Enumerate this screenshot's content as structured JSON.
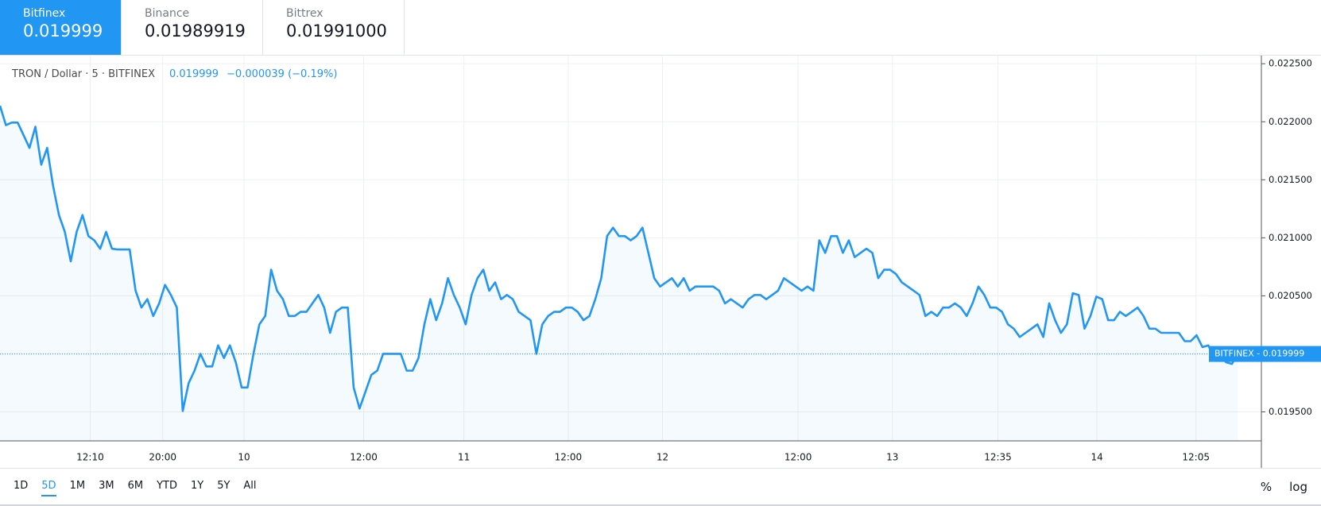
{
  "tabs": [
    {
      "name": "Bitfinex",
      "price": "0.019999"
    },
    {
      "name": "Binance",
      "price": "0.01989919"
    },
    {
      "name": "Bittrex",
      "price": "0.01991000"
    }
  ],
  "chart_data": {
    "type": "line",
    "title": "TRON / Dollar · 5 · BITFINEX",
    "last_price": 0.019999,
    "change": "−0.000039 (−0.19%)",
    "price_tag": "BITFINEX - 0.019999",
    "color": "#2196f3",
    "grid": true,
    "values": [
      0.022138,
      0.021971,
      0.021993,
      0.021993,
      0.021884,
      0.021775,
      0.021957,
      0.02163,
      0.021775,
      0.021449,
      0.021196,
      0.021051,
      0.020797,
      0.021051,
      0.021196,
      0.021015,
      0.020978,
      0.020906,
      0.021051,
      0.020906,
      0.020899,
      0.020899,
      0.020899,
      0.020544,
      0.020399,
      0.020471,
      0.020326,
      0.020435,
      0.020594,
      0.020507,
      0.020399,
      0.019507,
      0.019747,
      0.019855,
      0.02,
      0.019891,
      0.019891,
      0.020073,
      0.019964,
      0.020073,
      0.019928,
      0.01971,
      0.01971,
      0.02,
      0.020254,
      0.020326,
      0.020725,
      0.020544,
      0.020471,
      0.020326,
      0.020326,
      0.020362,
      0.020362,
      0.020435,
      0.020507,
      0.020399,
      0.020181,
      0.020362,
      0.020399,
      0.020399,
      0.01971,
      0.019529,
      0.019674,
      0.019819,
      0.019855,
      0.02,
      0.02,
      0.02,
      0.02,
      0.019855,
      0.019855,
      0.019964,
      0.020254,
      0.020471,
      0.02029,
      0.020435,
      0.020652,
      0.020507,
      0.020399,
      0.020254,
      0.020507,
      0.020652,
      0.020725,
      0.020544,
      0.020616,
      0.020471,
      0.020507,
      0.020471,
      0.020362,
      0.020326,
      0.02029,
      0.02,
      0.020254,
      0.020326,
      0.020362,
      0.020362,
      0.020399,
      0.020399,
      0.020362,
      0.02029,
      0.020326,
      0.020471,
      0.020652,
      0.021015,
      0.021087,
      0.021015,
      0.021015,
      0.020978,
      0.021015,
      0.021087,
      0.02087,
      0.020652,
      0.02058,
      0.020616,
      0.020652,
      0.02058,
      0.020652,
      0.020544,
      0.02058,
      0.02058,
      0.02058,
      0.02058,
      0.020544,
      0.020435,
      0.020471,
      0.020435,
      0.020399,
      0.020471,
      0.020507,
      0.020507,
      0.020471,
      0.020507,
      0.020544,
      0.020652,
      0.020616,
      0.02058,
      0.020544,
      0.02058,
      0.020544,
      0.020978,
      0.02087,
      0.021015,
      0.021015,
      0.02087,
      0.020978,
      0.020833,
      0.02087,
      0.020906,
      0.02087,
      0.020652,
      0.020725,
      0.020725,
      0.020688,
      0.020616,
      0.02058,
      0.020544,
      0.020507,
      0.020326,
      0.020362,
      0.020326,
      0.020399,
      0.020399,
      0.020435,
      0.020399,
      0.020326,
      0.020435,
      0.02058,
      0.020507,
      0.020399,
      0.020399,
      0.020362,
      0.020254,
      0.020217,
      0.020145,
      0.020181,
      0.020217,
      0.020254,
      0.020145,
      0.020435,
      0.02029,
      0.020181,
      0.020254,
      0.020522,
      0.020507,
      0.020217,
      0.020326,
      0.020493,
      0.020471,
      0.02029,
      0.02029,
      0.020362,
      0.020326,
      0.020362,
      0.020399,
      0.020326,
      0.020217,
      0.020217,
      0.020181,
      0.020181,
      0.020181,
      0.020181,
      0.020109,
      0.020109,
      0.02016,
      0.020058,
      0.020073,
      0.019964,
      0.02,
      0.019928,
      0.019913,
      0.019999
    ],
    "xlim": [
      0,
      214
    ],
    "xticks": [
      {
        "value": 15.3,
        "label": "12:10"
      },
      {
        "value": 27.6,
        "label": "20:00"
      },
      {
        "value": 41.4,
        "label": "10"
      },
      {
        "value": 61.7,
        "label": "12:00"
      },
      {
        "value": 78.7,
        "label": "11"
      },
      {
        "value": 96.4,
        "label": "12:00"
      },
      {
        "value": 112.4,
        "label": "12"
      },
      {
        "value": 135.4,
        "label": "12:00"
      },
      {
        "value": 151.4,
        "label": "13"
      },
      {
        "value": 169.3,
        "label": "12:35"
      },
      {
        "value": 186.1,
        "label": "14"
      },
      {
        "value": 202.9,
        "label": "12:05"
      }
    ],
    "ylim": [
      0.01925,
      0.02257
    ],
    "yticks": [
      {
        "value": 0.0195,
        "label": "0.019500"
      },
      {
        "value": 0.02,
        "label": "0.020000"
      },
      {
        "value": 0.0205,
        "label": "0.020500"
      },
      {
        "value": 0.021,
        "label": "0.021000"
      },
      {
        "value": 0.0215,
        "label": "0.021500"
      },
      {
        "value": 0.022,
        "label": "0.022000"
      },
      {
        "value": 0.0225,
        "label": "0.022500"
      }
    ]
  },
  "ranges": [
    "1D",
    "5D",
    "1M",
    "3M",
    "6M",
    "YTD",
    "1Y",
    "5Y",
    "All"
  ],
  "scale_buttons": [
    "%",
    "log"
  ]
}
